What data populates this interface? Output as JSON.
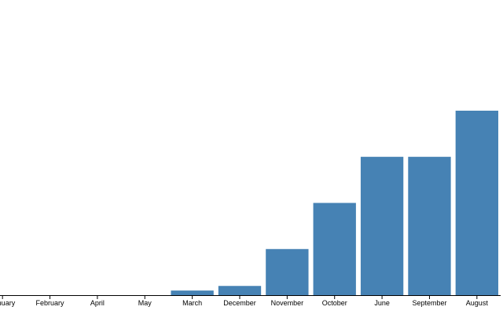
{
  "chart_data": {
    "type": "bar",
    "categories": [
      "January",
      "February",
      "April",
      "May",
      "March",
      "December",
      "November",
      "October",
      "June",
      "September",
      "August"
    ],
    "values": [
      0,
      0,
      0,
      0,
      0.1,
      0.2,
      1,
      2,
      3,
      3,
      4
    ],
    "color": "#4682b4",
    "ylim": [
      0,
      6.4
    ]
  }
}
